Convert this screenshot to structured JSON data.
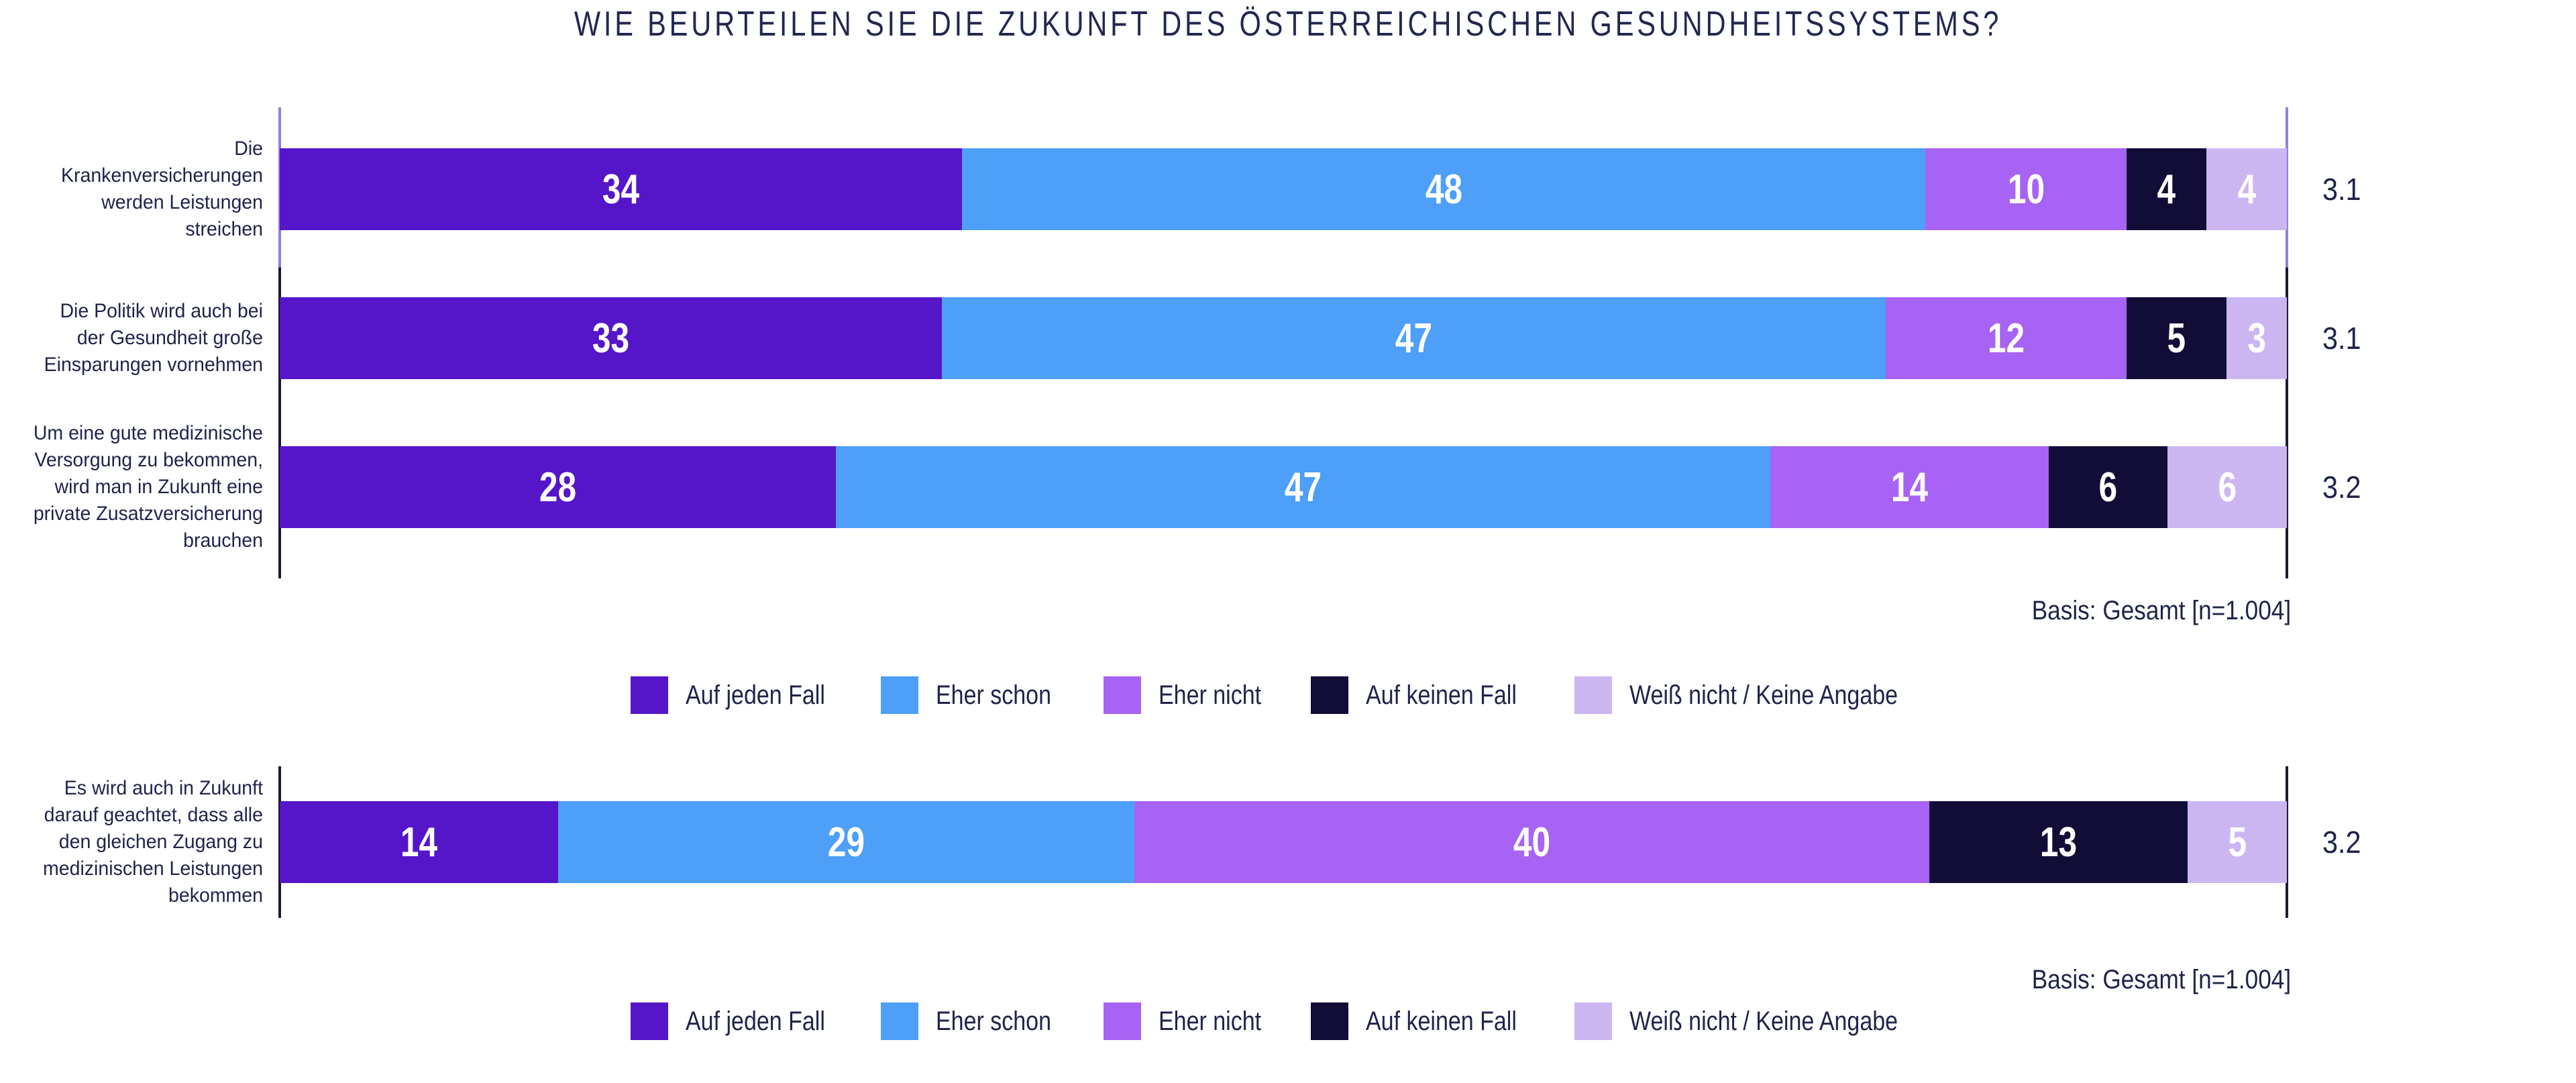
{
  "title": "WIE BEURTEILEN SIE DIE ZUKUNFT DES ÖSTERREICHISCHEN GESUNDHEITSSYSTEMS?",
  "colors": {
    "auf_jeden_fall": "#5516c9",
    "eher_schon": "#4d9ff8",
    "eher_nicht": "#a763f3",
    "auf_keinen_fall": "#110d36",
    "weiss_nicht_keine_angabe": "#ccb6f1",
    "axis_light_purple": "#8e80de",
    "axis_dark_navy": "#181a38",
    "text_navy": "#20244a",
    "value_label_white": "#ffffff"
  },
  "legend": {
    "items": [
      {
        "label": "Auf jeden Fall",
        "color": "#5516c9"
      },
      {
        "label": "Eher schon",
        "color": "#4d9ff8"
      },
      {
        "label": "Eher nicht",
        "color": "#a763f3"
      },
      {
        "label": "Auf keinen Fall",
        "color": "#110d36"
      },
      {
        "label": "Weiß nicht / Keine Angabe",
        "color": "#ccb6f1"
      }
    ]
  },
  "chart_data": [
    {
      "type": "bar",
      "stacked": true,
      "orientation": "horizontal",
      "unit": "percent",
      "xlim": [
        0,
        100
      ],
      "grid": false,
      "legend_position": "bottom",
      "categories": [
        "Die\nKrankenversicherungen\nwerden Leistungen\nstreichen",
        "Die Politik wird auch bei\nder Gesundheit große\nEinsparungen vornehmen",
        "Um eine gute medizinische\nVersorgung zu bekommen,\nwird man in Zukunft eine\nprivate Zusatzversicherung\nbrauchen"
      ],
      "series": [
        {
          "name": "Auf jeden Fall",
          "color": "#5516c9",
          "values": [
            34,
            33,
            28
          ]
        },
        {
          "name": "Eher schon",
          "color": "#4d9ff8",
          "values": [
            48,
            47,
            47
          ]
        },
        {
          "name": "Eher nicht",
          "color": "#a763f3",
          "values": [
            10,
            12,
            14
          ]
        },
        {
          "name": "Auf keinen Fall",
          "color": "#110d36",
          "values": [
            4,
            5,
            6
          ]
        },
        {
          "name": "Weiß nicht / Keine Angabe",
          "color": "#ccb6f1",
          "values": [
            4,
            3,
            6
          ]
        }
      ],
      "means": [
        "3.1",
        "3.1",
        "3.2"
      ],
      "basis": "Basis: Gesamt [n=1.004]"
    },
    {
      "type": "bar",
      "stacked": true,
      "orientation": "horizontal",
      "unit": "percent",
      "xlim": [
        0,
        100
      ],
      "grid": false,
      "legend_position": "bottom",
      "categories": [
        "Es wird auch in Zukunft\ndarauf geachtet, dass alle\nden gleichen Zugang zu\nmedizinischen Leistungen\nbekommen"
      ],
      "series": [
        {
          "name": "Auf jeden Fall",
          "color": "#5516c9",
          "values": [
            14
          ]
        },
        {
          "name": "Eher schon",
          "color": "#4d9ff8",
          "values": [
            29
          ]
        },
        {
          "name": "Eher nicht",
          "color": "#a763f3",
          "values": [
            40
          ]
        },
        {
          "name": "Auf keinen Fall",
          "color": "#110d36",
          "values": [
            13
          ]
        },
        {
          "name": "Weiß nicht / Keine Angabe",
          "color": "#ccb6f1",
          "values": [
            5
          ]
        }
      ],
      "means": [
        "3.2"
      ],
      "basis": "Basis: Gesamt [n=1.004]"
    }
  ]
}
